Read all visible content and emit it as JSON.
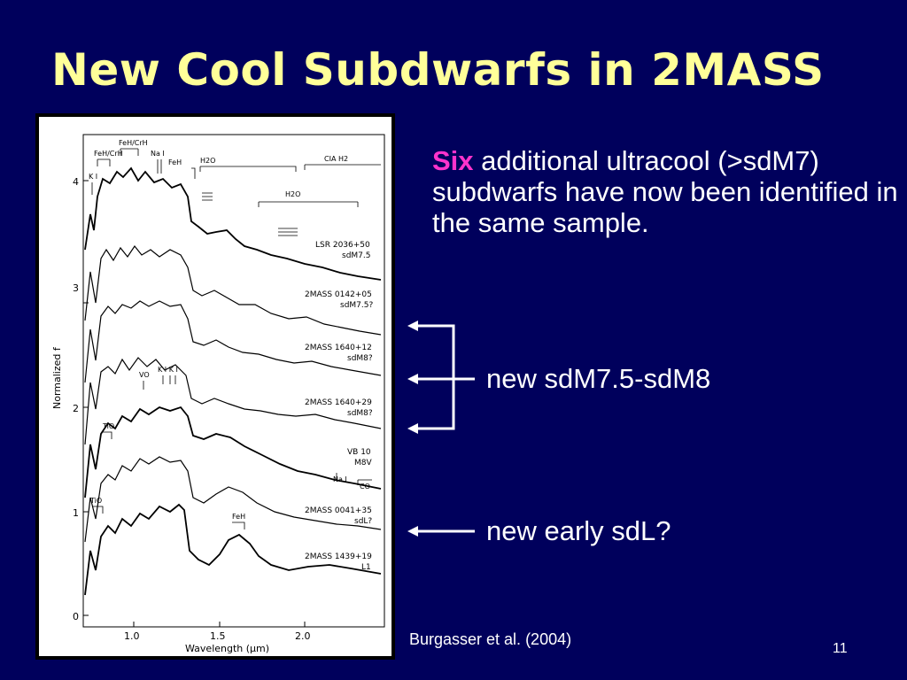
{
  "slide": {
    "title": "New Cool Subdwarfs in 2MASS",
    "body": {
      "highlight": "Six",
      "rest": " additional ultracool (>sdM7) subdwarfs have now been identified in the same sample."
    },
    "label_sdm": "new sdM7.5-sdM8",
    "label_sdl": "new early sdL?",
    "citation": "Burgasser et al. (2004)",
    "page_number": "11"
  },
  "figure": {
    "x_axis_label": "Wavelength (μm)",
    "y_axis_label": "Normalized f",
    "x_ticks": [
      "1.0",
      "1.5",
      "2.0"
    ],
    "y_ticks": [
      "0",
      "1",
      "2",
      "3",
      "4"
    ],
    "feature_labels": {
      "feh_crh_top": "FeH/CrH",
      "feh_crh": "FeH/CrH",
      "nai": "Na I",
      "ki": "K I",
      "feh": "FeH",
      "h2o_1": "H2O",
      "h2o_2": "H2O",
      "cia": "CIA H2",
      "vo": "VO",
      "kiki": "K I K I",
      "tio_1": "TiO",
      "tio_2": "TiO",
      "nai_2": "Na I",
      "co": "CO",
      "feh_2": "FeH"
    },
    "spectra": [
      {
        "name": "LSR 2036+50",
        "type": "sdM7.5"
      },
      {
        "name": "2MASS 0142+05",
        "type": "sdM7.5?"
      },
      {
        "name": "2MASS 1640+12",
        "type": "sdM8?"
      },
      {
        "name": "2MASS 1640+29",
        "type": "sdM8?"
      },
      {
        "name": "VB 10",
        "type": "M8V"
      },
      {
        "name": "2MASS 0041+35",
        "type": "sdL?"
      },
      {
        "name": "2MASS 1439+19",
        "type": "L1"
      }
    ]
  }
}
